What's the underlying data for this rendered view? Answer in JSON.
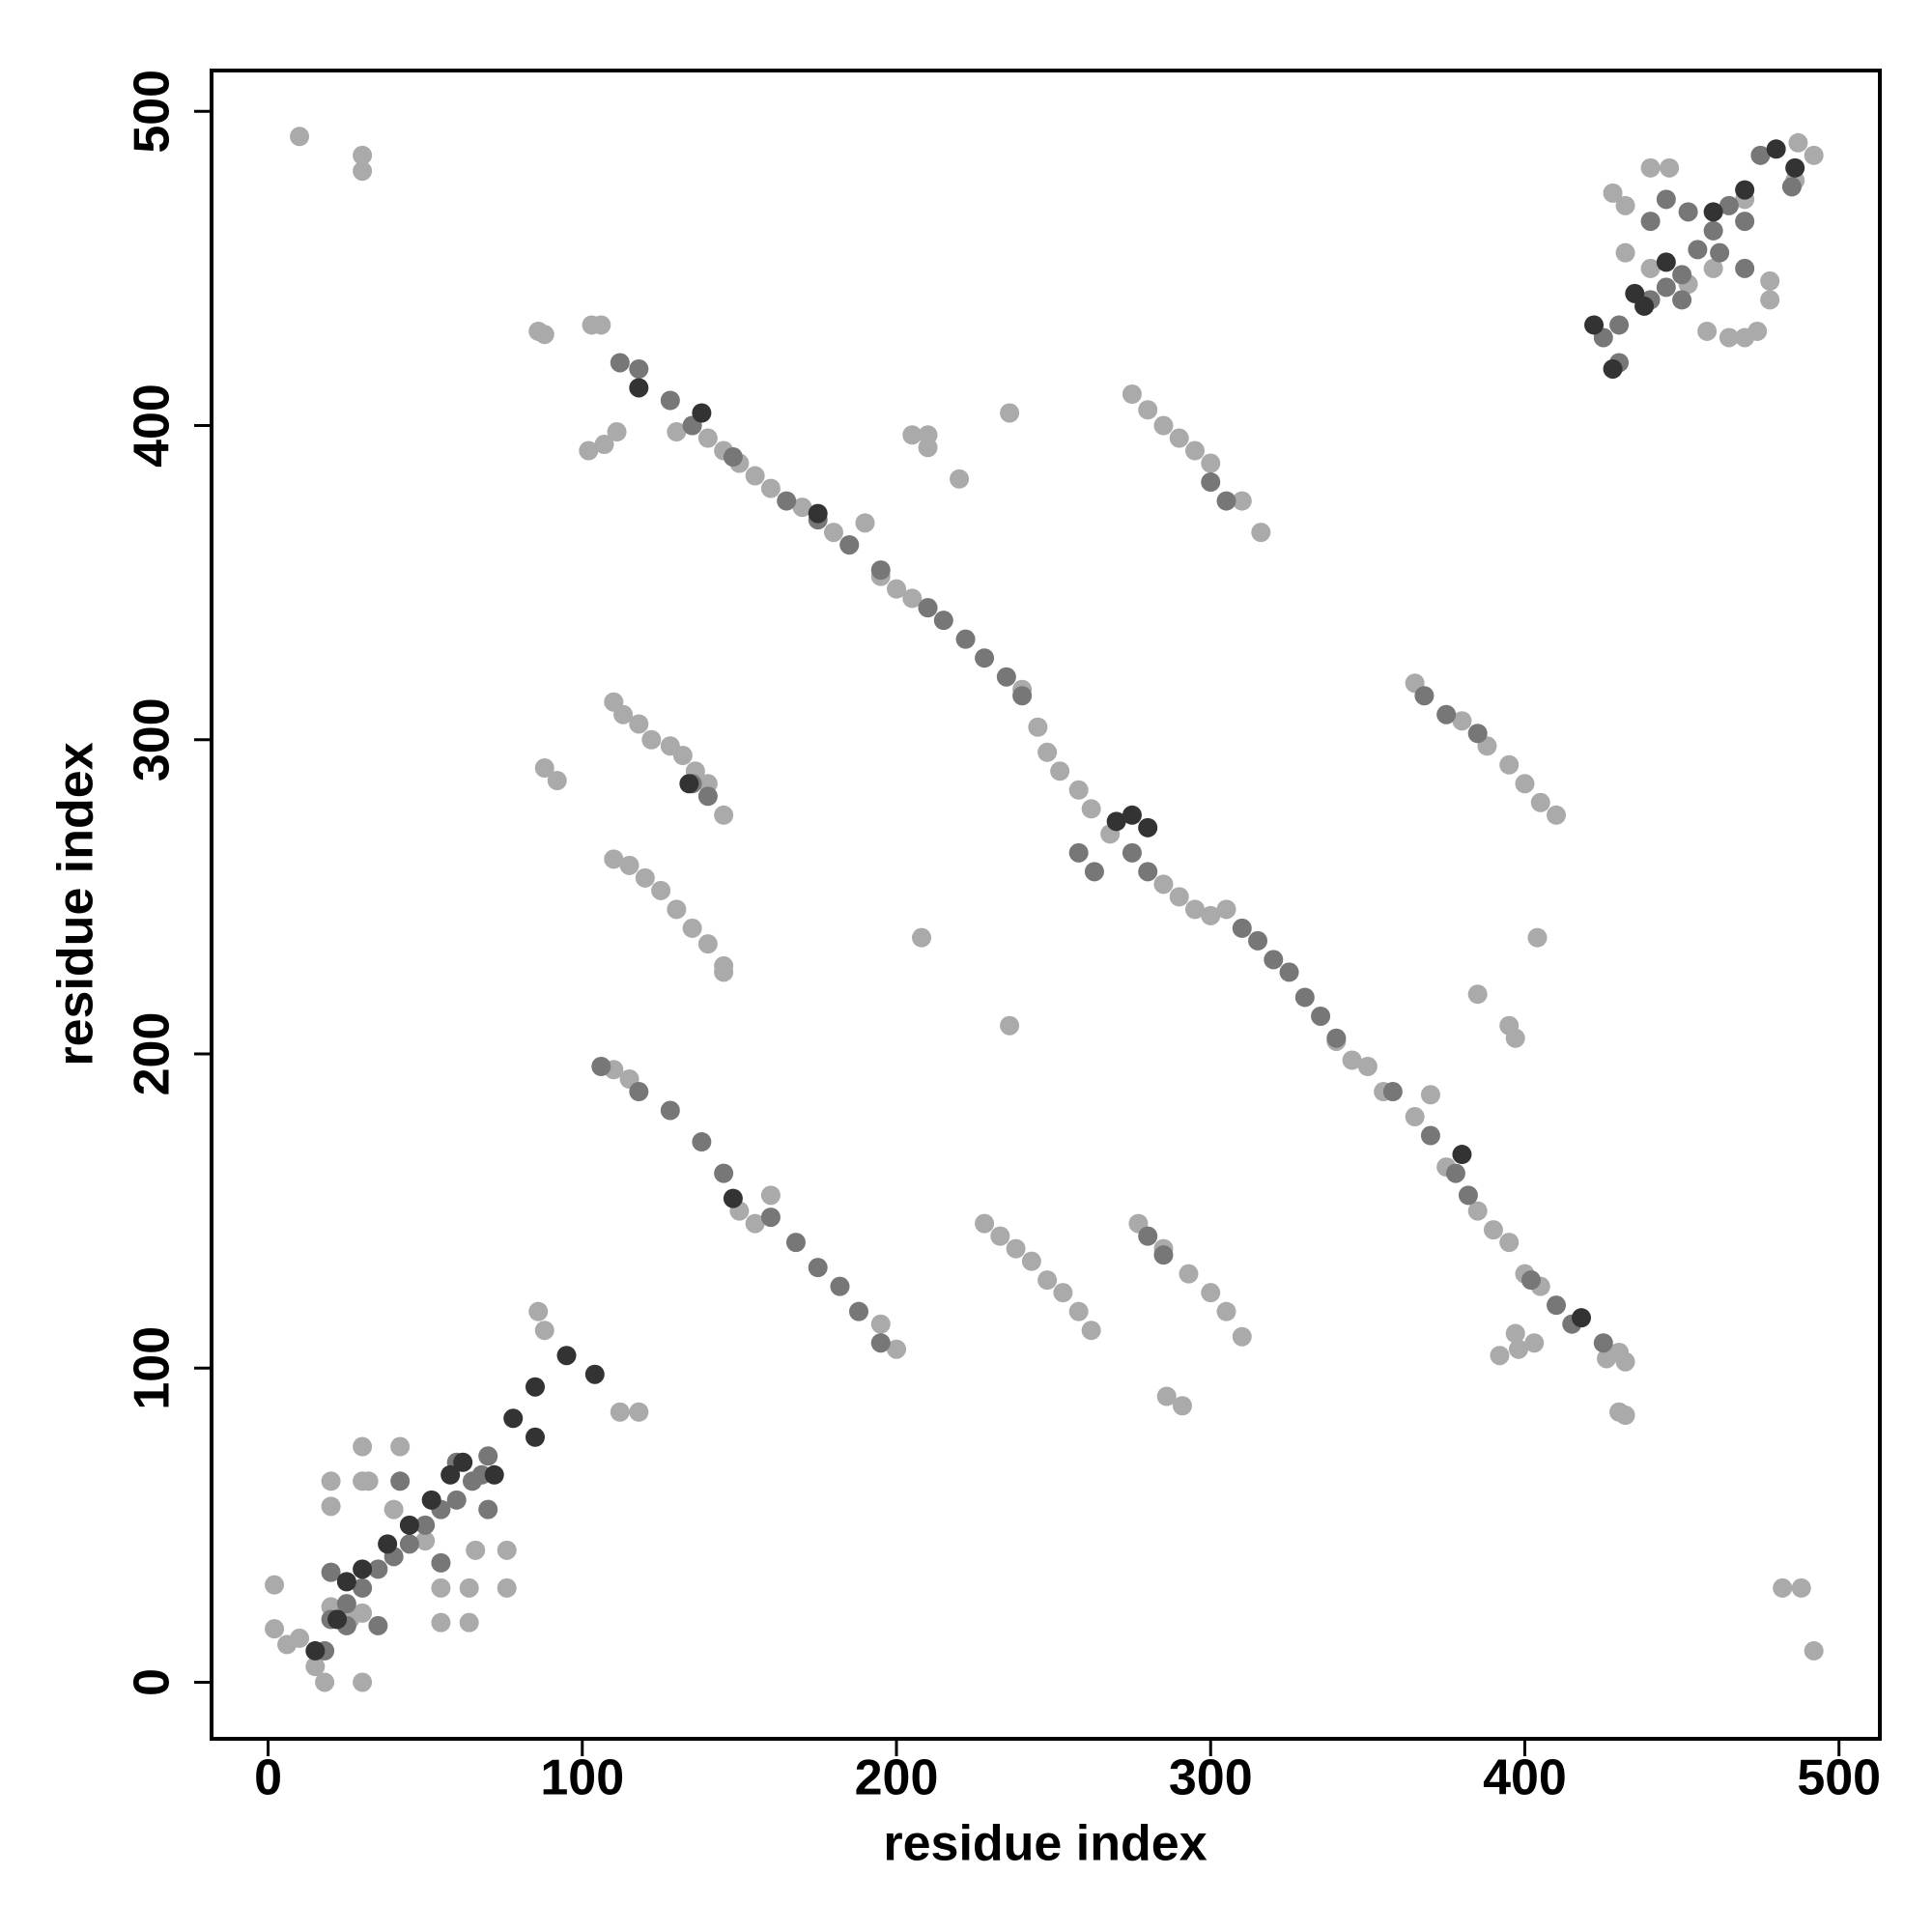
{
  "chart_data": {
    "type": "scatter",
    "x_label": "residue index",
    "y_label": "residue index",
    "xlim": [
      -18,
      513
    ],
    "ylim": [
      -18,
      513
    ],
    "xticks": [
      0,
      100,
      200,
      300,
      400,
      500
    ],
    "yticks": [
      0,
      100,
      200,
      300,
      400,
      500
    ],
    "series": [
      {
        "color": "#aaaaaa",
        "x": [
          10,
          30,
          30,
          86,
          88,
          103,
          106,
          102,
          107,
          111,
          236,
          205,
          210,
          210,
          220,
          130,
          135,
          140,
          145,
          150,
          155,
          160,
          170,
          180,
          185,
          190,
          195,
          200,
          205,
          210,
          240,
          245,
          248,
          252,
          258,
          262,
          268,
          285,
          290,
          295,
          300,
          305,
          340,
          345,
          350,
          355,
          365,
          375,
          385,
          390,
          395,
          400,
          405,
          430,
          432,
          426,
          403,
          398,
          392,
          397,
          110,
          113,
          118,
          122,
          128,
          132,
          136,
          140,
          145,
          110,
          115,
          120,
          125,
          130,
          135,
          140,
          145,
          145,
          228,
          233,
          238,
          243,
          248,
          253,
          258,
          262,
          277,
          285,
          293,
          300,
          305,
          310,
          275,
          280,
          285,
          290,
          295,
          300,
          310,
          316,
          365,
          380,
          388,
          395,
          400,
          405,
          410,
          88,
          92,
          208,
          236,
          385,
          395,
          397,
          404,
          370,
          286,
          291,
          430,
          432,
          482,
          488,
          492,
          150,
          155,
          160,
          110,
          115,
          200,
          195,
          2,
          2,
          6,
          10,
          15,
          18,
          30,
          20,
          20,
          30,
          30,
          42,
          32,
          55,
          64,
          64,
          55,
          76,
          76,
          66,
          86,
          88,
          112,
          118,
          20,
          26,
          30,
          40,
          50,
          428,
          432,
          446,
          440,
          432,
          440,
          458,
          465,
          470,
          474,
          478,
          478,
          487,
          492,
          486,
          470,
          452,
          460
        ],
        "y": [
          492,
          486,
          481,
          430,
          429,
          432,
          432,
          392,
          394,
          398,
          404,
          397,
          397,
          393,
          383,
          398,
          400,
          396,
          392,
          388,
          384,
          380,
          374,
          366,
          362,
          369,
          352,
          348,
          345,
          342,
          316,
          304,
          296,
          290,
          284,
          278,
          270,
          254,
          250,
          246,
          244,
          246,
          204,
          198,
          196,
          188,
          180,
          164,
          150,
          144,
          140,
          130,
          126,
          105,
          102,
          103,
          108,
          106,
          104,
          111,
          312,
          308,
          305,
          300,
          298,
          295,
          290,
          286,
          276,
          262,
          260,
          256,
          252,
          246,
          240,
          235,
          228,
          226,
          146,
          142,
          138,
          134,
          128,
          124,
          118,
          112,
          146,
          138,
          130,
          124,
          118,
          110,
          410,
          405,
          400,
          396,
          392,
          388,
          376,
          366,
          318,
          306,
          298,
          292,
          286,
          280,
          276,
          291,
          287,
          237,
          209,
          219,
          209,
          205,
          237,
          187,
          91,
          88,
          86,
          85,
          30,
          30,
          10,
          150,
          146,
          155,
          195,
          192,
          106,
          114,
          31,
          17,
          12,
          14,
          5,
          0,
          0,
          64,
          56,
          75,
          64,
          75,
          64,
          30,
          30,
          19,
          19,
          30,
          42,
          42,
          118,
          112,
          86,
          86,
          24,
          20,
          22,
          55,
          45,
          474,
          470,
          482,
          482,
          455,
          450,
          430,
          428,
          428,
          430,
          440,
          446,
          490,
          486,
          478,
          472,
          445,
          450
        ]
      },
      {
        "color": "#777777",
        "x": [
          112,
          118,
          128,
          135,
          148,
          165,
          175,
          185,
          195,
          210,
          215,
          222,
          228,
          235,
          240,
          275,
          280,
          310,
          315,
          320,
          325,
          330,
          335,
          340,
          358,
          370,
          378,
          382,
          402,
          410,
          415,
          425,
          135,
          140,
          280,
          285,
          300,
          305,
          368,
          375,
          385,
          118,
          128,
          138,
          145,
          160,
          168,
          175,
          182,
          188,
          195,
          106,
          425,
          430,
          440,
          445,
          450,
          455,
          460,
          465,
          470,
          445,
          452,
          462,
          470,
          450,
          440,
          475,
          485,
          430,
          18,
          20,
          25,
          30,
          35,
          40,
          45,
          50,
          55,
          60,
          65,
          68,
          42,
          60,
          70,
          20,
          25,
          35,
          55,
          70,
          258,
          263
        ],
        "y": [
          420,
          418,
          408,
          400,
          390,
          376,
          370,
          362,
          354,
          342,
          338,
          332,
          326,
          320,
          314,
          264,
          258,
          240,
          236,
          230,
          226,
          218,
          212,
          205,
          188,
          174,
          162,
          155,
          128,
          120,
          114,
          108,
          286,
          282,
          142,
          136,
          382,
          376,
          314,
          308,
          302,
          188,
          182,
          172,
          162,
          148,
          140,
          132,
          126,
          118,
          108,
          196,
          428,
          432,
          440,
          444,
          448,
          456,
          462,
          470,
          465,
          472,
          468,
          455,
          450,
          440,
          465,
          486,
          476,
          420,
          10,
          20,
          25,
          30,
          36,
          40,
          44,
          50,
          55,
          58,
          64,
          66,
          64,
          70,
          55,
          35,
          18,
          18,
          38,
          72,
          264,
          258
        ]
      },
      {
        "color": "#333333",
        "x": [
          118,
          138,
          175,
          270,
          275,
          280,
          380,
          418,
          134,
          148,
          25,
          30,
          38,
          45,
          52,
          58,
          62,
          78,
          85,
          95,
          104,
          85,
          72,
          435,
          438,
          445,
          460,
          470,
          480,
          486,
          422,
          428,
          22,
          15
        ],
        "y": [
          412,
          404,
          372,
          274,
          276,
          272,
          168,
          116,
          286,
          154,
          32,
          36,
          44,
          50,
          58,
          66,
          70,
          84,
          94,
          104,
          98,
          78,
          66,
          442,
          438,
          452,
          468,
          475,
          488,
          482,
          432,
          418,
          20,
          10
        ]
      }
    ]
  }
}
